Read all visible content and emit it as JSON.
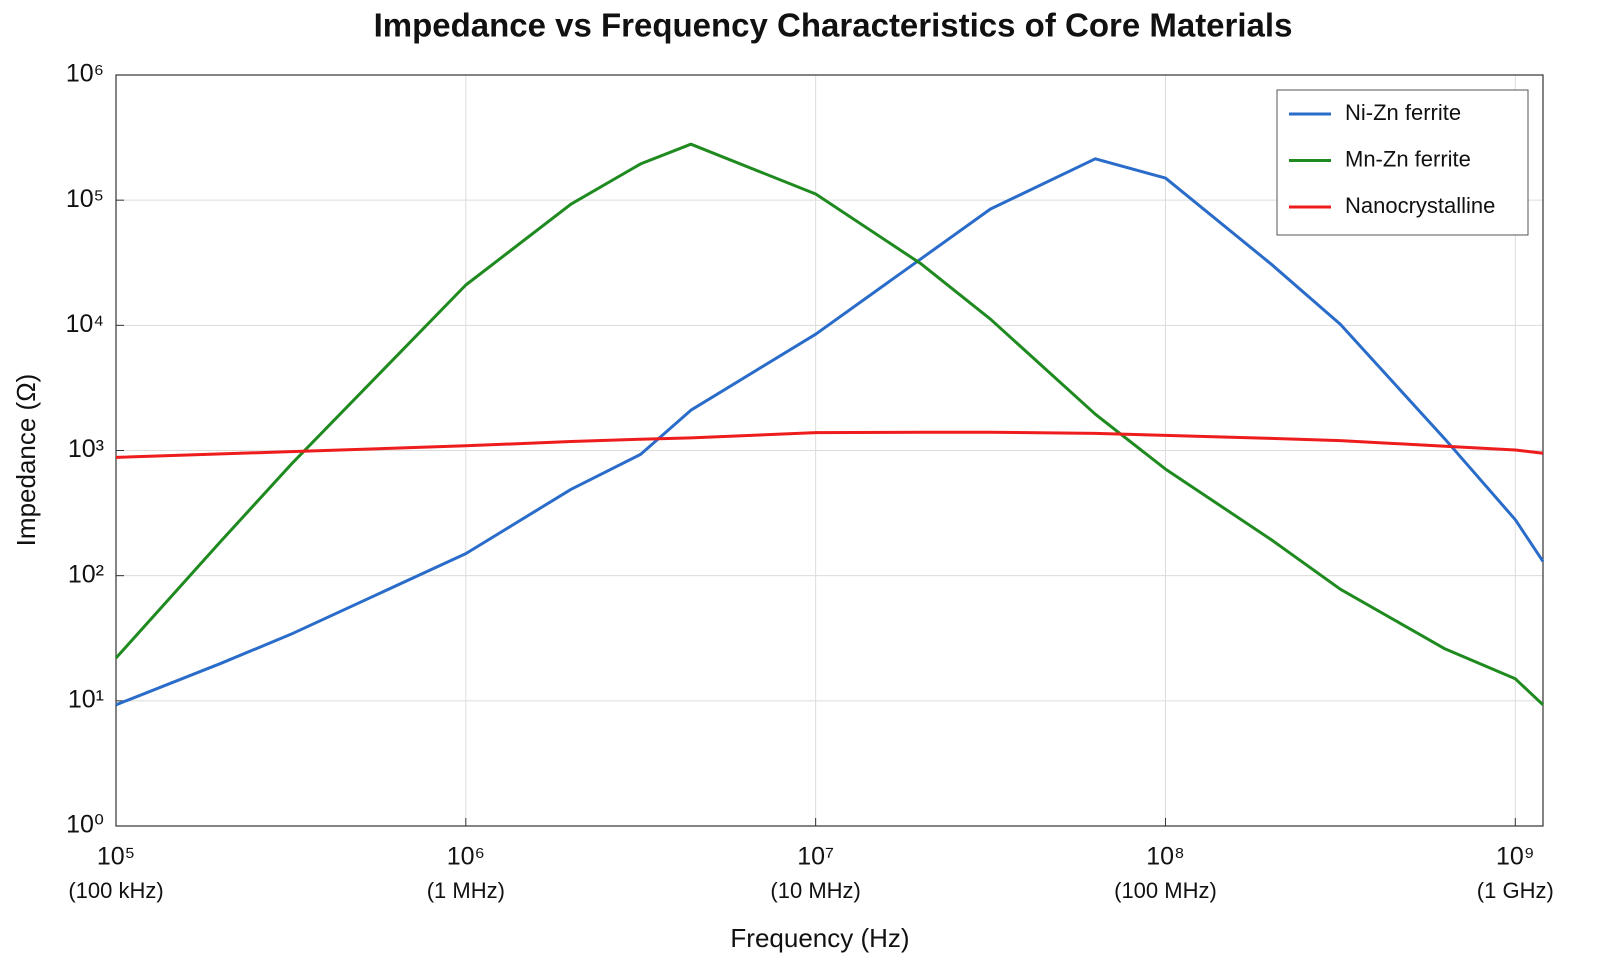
{
  "chart_data": {
    "type": "line",
    "title": "Impedance vs Frequency Characteristics of Core Materials",
    "xlabel": "Frequency (Hz)",
    "ylabel": "Impedance (Ω)",
    "xscale": "log",
    "yscale": "log",
    "grid": true,
    "legend": "upper right",
    "xlim": [
      100000,
      1200000000
    ],
    "ylim": [
      1,
      1000000
    ],
    "xticks": [
      {
        "value": 100000,
        "label": "10⁵",
        "sublabel": "(100 kHz)"
      },
      {
        "value": 1000000,
        "label": "10⁶",
        "sublabel": "(1 MHz)"
      },
      {
        "value": 10000000,
        "label": "10⁷",
        "sublabel": "(10 MHz)"
      },
      {
        "value": 100000000,
        "label": "10⁸",
        "sublabel": "(100 MHz)"
      },
      {
        "value": 1000000000,
        "label": "10⁹",
        "sublabel": "(1 GHz)"
      }
    ],
    "yticks": [
      {
        "value": 1,
        "label": "10⁰"
      },
      {
        "value": 10,
        "label": "10¹"
      },
      {
        "value": 100,
        "label": "10²"
      },
      {
        "value": 1000,
        "label": "10³"
      },
      {
        "value": 10000,
        "label": "10⁴"
      },
      {
        "value": 100000,
        "label": "10⁵"
      },
      {
        "value": 1000000,
        "label": "10⁶"
      }
    ],
    "x": [
      100000,
      200000,
      316000,
      1000000,
      2000000,
      3160000,
      4400000,
      10000000,
      20000000,
      31600000,
      63000000,
      100000000,
      200000000,
      316000000,
      630000000,
      1000000000,
      1200000000
    ],
    "series": [
      {
        "name": "Ni-Zn ferrite",
        "color": "#2a6cc9",
        "values": [
          9.3,
          20,
          34,
          150,
          490,
          930,
          2100,
          8500,
          34000,
          85000,
          214000,
          150000,
          31000,
          10200,
          1230,
          280,
          130
        ]
      },
      {
        "name": "Mn-Zn ferrite",
        "color": "#1f8a1f",
        "values": [
          22,
          190,
          770,
          21000,
          93000,
          195000,
          280000,
          112000,
          31000,
          11200,
          1950,
          710,
          195,
          78,
          26,
          15,
          9.3
        ]
      },
      {
        "name": "Nanocrystalline",
        "color": "#ee1c1c",
        "values": [
          880,
          940,
          980,
          1090,
          1180,
          1230,
          1260,
          1390,
          1400,
          1400,
          1370,
          1320,
          1250,
          1200,
          1080,
          1010,
          950
        ]
      }
    ]
  }
}
